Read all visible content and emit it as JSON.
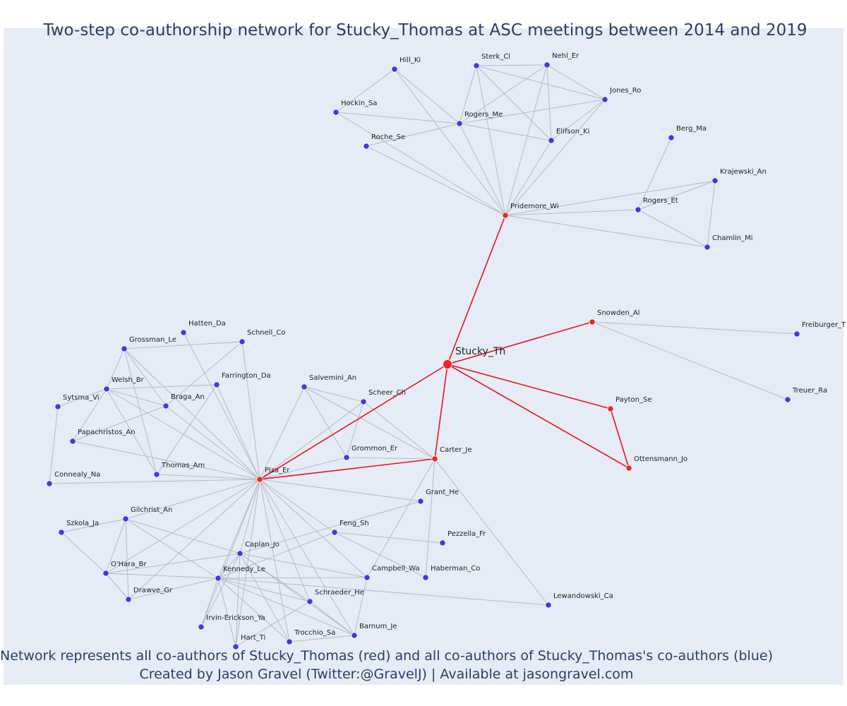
{
  "title": "Two-step co-authorship network for Stucky_Thomas at ASC meetings between 2014 and 2019",
  "footer": {
    "line1": "Network represents all co-authors of Stucky_Thomas (red) and all co-authors of Stucky_Thomas's co-authors (blue)",
    "line2": "Created by Jason Gravel (Twitter:@GravelJ) | Available at jasongravel.com"
  },
  "colors": {
    "background": "#e5ecf6",
    "red_node": "#f02424",
    "blue_node": "#3b3be6",
    "red_edge": "#e8131f",
    "gray_edge": "#b7b9c3",
    "text": "#2a3f5f"
  },
  "nodes": [
    {
      "id": "Stucky_Th",
      "group": "focus"
    },
    {
      "id": "Pridemore_Wi",
      "group": "red"
    },
    {
      "id": "Snowden_Al",
      "group": "red"
    },
    {
      "id": "Payton_Se",
      "group": "red"
    },
    {
      "id": "Ottensmann_Jo",
      "group": "red"
    },
    {
      "id": "Carter_Je",
      "group": "red"
    },
    {
      "id": "Piza_Er",
      "group": "red"
    },
    {
      "id": "Hill_Ki",
      "group": "blue"
    },
    {
      "id": "Sterk_Cl",
      "group": "blue"
    },
    {
      "id": "Nehl_Er",
      "group": "blue"
    },
    {
      "id": "Jones_Ro",
      "group": "blue"
    },
    {
      "id": "Hockin_Sa",
      "group": "blue"
    },
    {
      "id": "Rogers_Me",
      "group": "blue"
    },
    {
      "id": "Elifson_Ki",
      "group": "blue"
    },
    {
      "id": "Roche_Se",
      "group": "blue"
    },
    {
      "id": "Berg_Ma",
      "group": "blue"
    },
    {
      "id": "Krajewski_An",
      "group": "blue"
    },
    {
      "id": "Rogers_Et",
      "group": "blue"
    },
    {
      "id": "Chamlin_Mi",
      "group": "blue"
    },
    {
      "id": "Freiburger_T",
      "group": "blue"
    },
    {
      "id": "Treuer_Ra",
      "group": "blue"
    },
    {
      "id": "Hatten_Da",
      "group": "blue"
    },
    {
      "id": "Schnell_Co",
      "group": "blue"
    },
    {
      "id": "Grossman_Le",
      "group": "blue"
    },
    {
      "id": "Farrington_Da",
      "group": "blue"
    },
    {
      "id": "Salvemini_An",
      "group": "blue"
    },
    {
      "id": "Welsh_Br",
      "group": "blue"
    },
    {
      "id": "Scheer_Ch",
      "group": "blue"
    },
    {
      "id": "Sytsma_Vi",
      "group": "blue"
    },
    {
      "id": "Braga_An",
      "group": "blue"
    },
    {
      "id": "Papachristos_An",
      "group": "blue"
    },
    {
      "id": "Grommon_Er",
      "group": "blue"
    },
    {
      "id": "Thomas_Am",
      "group": "blue"
    },
    {
      "id": "Connealy_Na",
      "group": "blue"
    },
    {
      "id": "Grant_He",
      "group": "blue"
    },
    {
      "id": "Gilchrist_An",
      "group": "blue"
    },
    {
      "id": "Szkola_Ja",
      "group": "blue"
    },
    {
      "id": "Feng_Sh",
      "group": "blue"
    },
    {
      "id": "Pezzella_Fr",
      "group": "blue"
    },
    {
      "id": "Caplan_Jo",
      "group": "blue"
    },
    {
      "id": "O'Hara_Br",
      "group": "blue"
    },
    {
      "id": "Kennedy_Le",
      "group": "blue"
    },
    {
      "id": "Campbell_Wa",
      "group": "blue"
    },
    {
      "id": "Haberman_Co",
      "group": "blue"
    },
    {
      "id": "Drawve_Gr",
      "group": "blue"
    },
    {
      "id": "Schraeder_He",
      "group": "blue"
    },
    {
      "id": "Lewandowski_Ca",
      "group": "blue"
    },
    {
      "id": "Irvin-Erickson_Ya",
      "group": "blue"
    },
    {
      "id": "Trocchio_Sa",
      "group": "blue"
    },
    {
      "id": "Barnum_Je",
      "group": "blue"
    },
    {
      "id": "Hart_Ti",
      "group": "blue"
    }
  ],
  "edges": [
    [
      "Stucky_Th",
      "Pridemore_Wi"
    ],
    [
      "Stucky_Th",
      "Snowden_Al"
    ],
    [
      "Stucky_Th",
      "Payton_Se"
    ],
    [
      "Stucky_Th",
      "Ottensmann_Jo"
    ],
    [
      "Stucky_Th",
      "Carter_Je"
    ],
    [
      "Stucky_Th",
      "Piza_Er"
    ],
    [
      "Payton_Se",
      "Ottensmann_Jo"
    ],
    [
      "Piza_Er",
      "Carter_Je"
    ],
    [
      "Pridemore_Wi",
      "Hill_Ki"
    ],
    [
      "Pridemore_Wi",
      "Sterk_Cl"
    ],
    [
      "Pridemore_Wi",
      "Nehl_Er"
    ],
    [
      "Pridemore_Wi",
      "Jones_Ro"
    ],
    [
      "Pridemore_Wi",
      "Hockin_Sa"
    ],
    [
      "Pridemore_Wi",
      "Rogers_Me"
    ],
    [
      "Pridemore_Wi",
      "Elifson_Ki"
    ],
    [
      "Pridemore_Wi",
      "Roche_Se"
    ],
    [
      "Pridemore_Wi",
      "Krajewski_An"
    ],
    [
      "Pridemore_Wi",
      "Rogers_Et"
    ],
    [
      "Pridemore_Wi",
      "Chamlin_Mi"
    ],
    [
      "Hill_Ki",
      "Hockin_Sa"
    ],
    [
      "Hill_Ki",
      "Rogers_Me"
    ],
    [
      "Sterk_Cl",
      "Nehl_Er"
    ],
    [
      "Sterk_Cl",
      "Rogers_Me"
    ],
    [
      "Sterk_Cl",
      "Elifson_Ki"
    ],
    [
      "Sterk_Cl",
      "Jones_Ro"
    ],
    [
      "Nehl_Er",
      "Rogers_Me"
    ],
    [
      "Nehl_Er",
      "Elifson_Ki"
    ],
    [
      "Nehl_Er",
      "Jones_Ro"
    ],
    [
      "Jones_Ro",
      "Rogers_Me"
    ],
    [
      "Jones_Ro",
      "Elifson_Ki"
    ],
    [
      "Hockin_Sa",
      "Rogers_Me"
    ],
    [
      "Rogers_Me",
      "Elifson_Ki"
    ],
    [
      "Rogers_Me",
      "Roche_Se"
    ],
    [
      "Berg_Ma",
      "Rogers_Et"
    ],
    [
      "Krajewski_An",
      "Rogers_Et"
    ],
    [
      "Krajewski_An",
      "Chamlin_Mi"
    ],
    [
      "Rogers_Et",
      "Chamlin_Mi"
    ],
    [
      "Snowden_Al",
      "Freiburger_T"
    ],
    [
      "Snowden_Al",
      "Treuer_Ra"
    ],
    [
      "Carter_Je",
      "Scheer_Ch"
    ],
    [
      "Carter_Je",
      "Salvemini_An"
    ],
    [
      "Carter_Je",
      "Grommon_Er"
    ],
    [
      "Carter_Je",
      "Campbell_Wa"
    ],
    [
      "Carter_Je",
      "Haberman_Co"
    ],
    [
      "Carter_Je",
      "Lewandowski_Ca"
    ],
    [
      "Salvemini_An",
      "Scheer_Ch"
    ],
    [
      "Salvemini_An",
      "Grommon_Er"
    ],
    [
      "Scheer_Ch",
      "Grommon_Er"
    ],
    [
      "Piza_Er",
      "Hatten_Da"
    ],
    [
      "Piza_Er",
      "Schnell_Co"
    ],
    [
      "Piza_Er",
      "Grossman_Le"
    ],
    [
      "Piza_Er",
      "Farrington_Da"
    ],
    [
      "Piza_Er",
      "Salvemini_An"
    ],
    [
      "Piza_Er",
      "Welsh_Br"
    ],
    [
      "Piza_Er",
      "Scheer_Ch"
    ],
    [
      "Piza_Er",
      "Braga_An"
    ],
    [
      "Piza_Er",
      "Papachristos_An"
    ],
    [
      "Piza_Er",
      "Grommon_Er"
    ],
    [
      "Piza_Er",
      "Thomas_Am"
    ],
    [
      "Piza_Er",
      "Connealy_Na"
    ],
    [
      "Piza_Er",
      "Grant_He"
    ],
    [
      "Piza_Er",
      "Gilchrist_An"
    ],
    [
      "Piza_Er",
      "Feng_Sh"
    ],
    [
      "Piza_Er",
      "Caplan_Jo"
    ],
    [
      "Piza_Er",
      "O'Hara_Br"
    ],
    [
      "Piza_Er",
      "Kennedy_Le"
    ],
    [
      "Piza_Er",
      "Campbell_Wa"
    ],
    [
      "Piza_Er",
      "Drawve_Gr"
    ],
    [
      "Piza_Er",
      "Schraeder_He"
    ],
    [
      "Piza_Er",
      "Irvin-Erickson_Ya"
    ],
    [
      "Piza_Er",
      "Trocchio_Sa"
    ],
    [
      "Piza_Er",
      "Barnum_Je"
    ],
    [
      "Piza_Er",
      "Hart_Ti"
    ],
    [
      "Grossman_Le",
      "Schnell_Co"
    ],
    [
      "Grossman_Le",
      "Welsh_Br"
    ],
    [
      "Grossman_Le",
      "Braga_An"
    ],
    [
      "Grossman_Le",
      "Thomas_Am"
    ],
    [
      "Schnell_Co",
      "Braga_An"
    ],
    [
      "Welsh_Br",
      "Braga_An"
    ],
    [
      "Welsh_Br",
      "Farrington_Da"
    ],
    [
      "Welsh_Br",
      "Papachristos_An"
    ],
    [
      "Welsh_Br",
      "Thomas_Am"
    ],
    [
      "Papachristos_An",
      "Braga_An"
    ],
    [
      "Sytsma_Vi",
      "Welsh_Br"
    ],
    [
      "Sytsma_Vi",
      "Connealy_Na"
    ],
    [
      "Farrington_Da",
      "Thomas_Am"
    ],
    [
      "Szkola_Ja",
      "Gilchrist_An"
    ],
    [
      "Szkola_Ja",
      "O'Hara_Br"
    ],
    [
      "Gilchrist_An",
      "O'Hara_Br"
    ],
    [
      "Gilchrist_An",
      "Kennedy_Le"
    ],
    [
      "Gilchrist_An",
      "Drawve_Gr"
    ],
    [
      "Gilchrist_An",
      "Caplan_Jo"
    ],
    [
      "O'Hara_Br",
      "Kennedy_Le"
    ],
    [
      "O'Hara_Br",
      "Drawve_Gr"
    ],
    [
      "O'Hara_Br",
      "Caplan_Jo"
    ],
    [
      "Caplan_Jo",
      "Kennedy_Le"
    ],
    [
      "Caplan_Jo",
      "Irvin-Erickson_Ya"
    ],
    [
      "Caplan_Jo",
      "Hart_Ti"
    ],
    [
      "Caplan_Jo",
      "Trocchio_Sa"
    ],
    [
      "Caplan_Jo",
      "Barnum_Je"
    ],
    [
      "Caplan_Jo",
      "Schraeder_He"
    ],
    [
      "Caplan_Jo",
      "Campbell_Wa"
    ],
    [
      "Caplan_Jo",
      "Grant_He"
    ],
    [
      "Kennedy_Le",
      "Campbell_Wa"
    ],
    [
      "Kennedy_Le",
      "Feng_Sh"
    ],
    [
      "Kennedy_Le",
      "Schraeder_He"
    ],
    [
      "Kennedy_Le",
      "Irvin-Erickson_Ya"
    ],
    [
      "Kennedy_Le",
      "Trocchio_Sa"
    ],
    [
      "Kennedy_Le",
      "Barnum_Je"
    ],
    [
      "Kennedy_Le",
      "Hart_Ti"
    ],
    [
      "Kennedy_Le",
      "Lewandowski_Ca"
    ],
    [
      "Kennedy_Le",
      "Drawve_Gr"
    ],
    [
      "Feng_Sh",
      "Pezzella_Fr"
    ],
    [
      "Feng_Sh",
      "Haberman_Co"
    ],
    [
      "Campbell_Wa",
      "Barnum_Je"
    ],
    [
      "Schraeder_He",
      "Barnum_Je"
    ],
    [
      "Schraeder_He",
      "Hart_Ti"
    ],
    [
      "Trocchio_Sa",
      "Barnum_Je"
    ]
  ]
}
